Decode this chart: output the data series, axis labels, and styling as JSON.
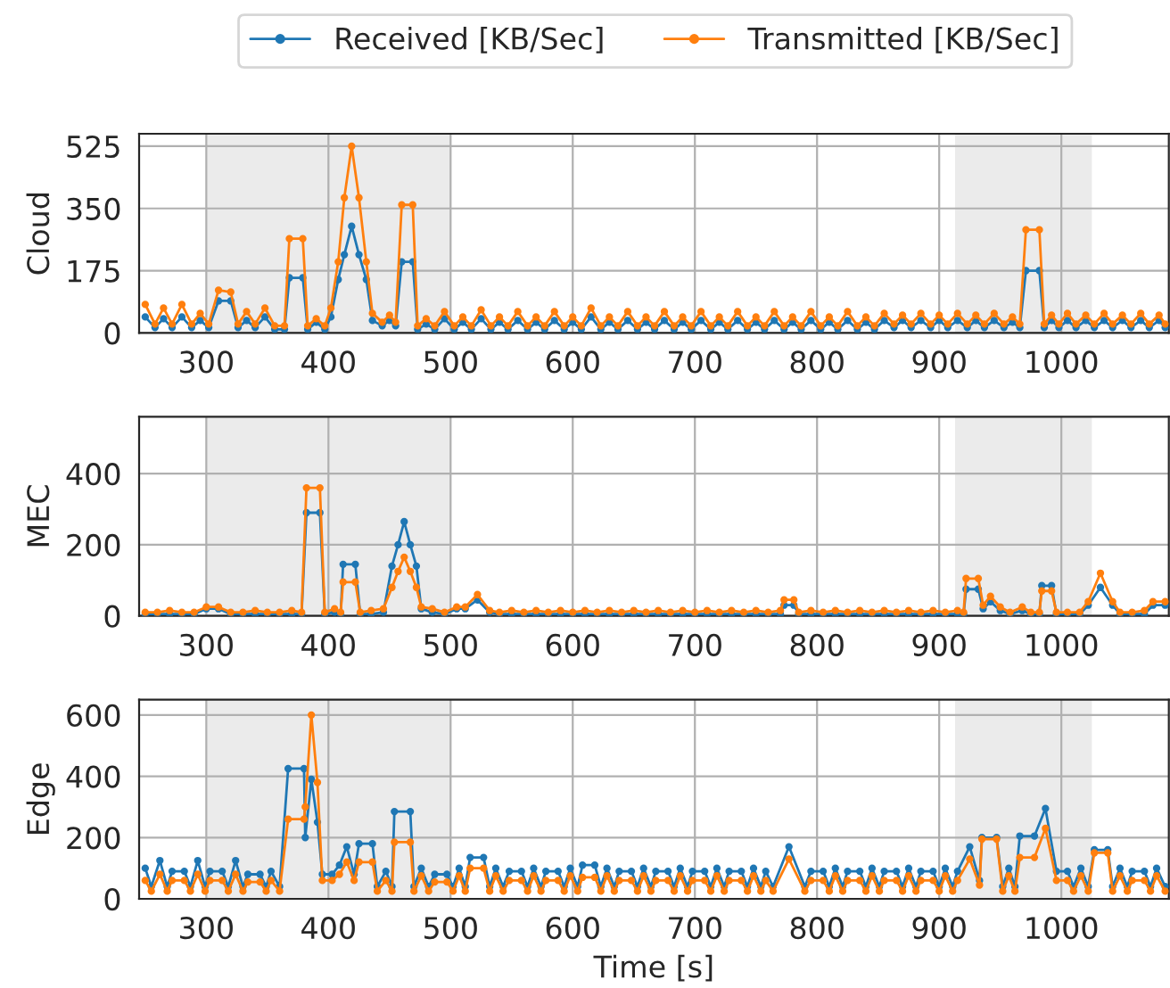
{
  "chart_data": [
    {
      "type": "line",
      "ylabel": "Cloud",
      "legend": "top",
      "marker": "circle",
      "grid": true,
      "xlim": [
        245,
        1088
      ],
      "xticks": [
        300,
        400,
        500,
        600,
        700,
        800,
        900,
        1000
      ],
      "ylim": [
        0,
        560
      ],
      "yticks": [
        0,
        175,
        350,
        525
      ],
      "bands": [
        {
          "axis": "x",
          "from": 300,
          "to": 500,
          "color": "#ebebeb"
        },
        {
          "axis": "x",
          "from": 913,
          "to": 1025,
          "color": "#ebebeb"
        }
      ],
      "x": [
        250,
        258,
        265,
        272,
        280,
        288,
        295,
        302,
        310,
        320,
        326,
        333,
        340,
        348,
        356,
        364,
        368,
        379,
        383,
        390,
        397,
        402,
        408,
        413,
        419,
        425,
        431,
        436,
        444,
        450,
        455,
        460,
        469,
        473,
        480,
        487,
        495,
        503,
        510,
        517,
        525,
        533,
        540,
        547,
        555,
        563,
        570,
        577,
        585,
        593,
        600,
        607,
        615,
        623,
        630,
        637,
        645,
        653,
        660,
        667,
        675,
        683,
        690,
        697,
        705,
        713,
        720,
        727,
        735,
        743,
        750,
        757,
        765,
        773,
        780,
        787,
        795,
        803,
        810,
        817,
        825,
        833,
        840,
        847,
        855,
        863,
        870,
        877,
        885,
        893,
        900,
        907,
        915,
        923,
        930,
        937,
        945,
        953,
        960,
        966,
        971,
        982,
        986,
        992,
        998,
        1005,
        1012,
        1020,
        1027,
        1035,
        1042,
        1050,
        1057,
        1065,
        1072,
        1080,
        1085
      ],
      "series": [
        {
          "name": "Received [KB/Sec]",
          "color": "#1f77b4",
          "values": [
            45,
            15,
            40,
            15,
            45,
            15,
            35,
            15,
            90,
            90,
            15,
            35,
            15,
            45,
            10,
            10,
            155,
            155,
            10,
            30,
            10,
            45,
            150,
            220,
            300,
            220,
            150,
            35,
            20,
            35,
            20,
            200,
            200,
            10,
            25,
            10,
            40,
            10,
            30,
            10,
            40,
            10,
            30,
            10,
            35,
            10,
            30,
            10,
            35,
            10,
            30,
            10,
            45,
            10,
            30,
            10,
            35,
            10,
            30,
            10,
            35,
            10,
            30,
            10,
            35,
            10,
            30,
            10,
            35,
            10,
            30,
            10,
            35,
            10,
            30,
            10,
            35,
            10,
            30,
            10,
            35,
            10,
            30,
            10,
            35,
            15,
            35,
            15,
            35,
            15,
            35,
            15,
            35,
            15,
            35,
            15,
            35,
            15,
            30,
            15,
            175,
            175,
            15,
            35,
            15,
            35,
            15,
            35,
            15,
            35,
            15,
            35,
            15,
            35,
            15,
            35,
            15
          ]
        },
        {
          "name": "Transmitted [KB/Sec]",
          "color": "#ff7f0e",
          "values": [
            80,
            25,
            70,
            25,
            80,
            25,
            55,
            25,
            120,
            115,
            25,
            60,
            25,
            70,
            20,
            20,
            265,
            265,
            20,
            40,
            20,
            70,
            200,
            380,
            525,
            380,
            200,
            55,
            30,
            50,
            30,
            360,
            360,
            20,
            40,
            20,
            60,
            20,
            45,
            20,
            65,
            20,
            45,
            20,
            60,
            20,
            45,
            20,
            60,
            20,
            45,
            20,
            70,
            20,
            45,
            20,
            60,
            20,
            45,
            20,
            60,
            20,
            45,
            20,
            60,
            20,
            45,
            20,
            60,
            20,
            45,
            20,
            60,
            20,
            45,
            20,
            60,
            20,
            45,
            20,
            60,
            20,
            45,
            20,
            55,
            25,
            50,
            25,
            55,
            25,
            50,
            25,
            55,
            25,
            50,
            25,
            55,
            25,
            45,
            25,
            290,
            290,
            25,
            50,
            25,
            55,
            25,
            50,
            25,
            55,
            25,
            50,
            25,
            55,
            25,
            50,
            25
          ]
        }
      ]
    },
    {
      "type": "line",
      "ylabel": "MEC",
      "marker": "circle",
      "grid": true,
      "xlim": [
        245,
        1088
      ],
      "xticks": [
        300,
        400,
        500,
        600,
        700,
        800,
        900,
        1000
      ],
      "ylim": [
        0,
        560
      ],
      "yticks": [
        0,
        200,
        400
      ],
      "bands": [
        {
          "axis": "x",
          "from": 300,
          "to": 500,
          "color": "#ebebeb"
        },
        {
          "axis": "x",
          "from": 913,
          "to": 1025,
          "color": "#ebebeb"
        }
      ],
      "x": [
        250,
        260,
        270,
        280,
        290,
        300,
        310,
        320,
        330,
        340,
        350,
        360,
        370,
        378,
        382,
        393,
        397,
        405,
        410,
        412,
        422,
        426,
        435,
        445,
        452,
        457,
        462,
        467,
        472,
        476,
        485,
        495,
        505,
        512,
        522,
        532,
        540,
        550,
        560,
        570,
        580,
        590,
        600,
        610,
        620,
        630,
        640,
        650,
        660,
        670,
        680,
        690,
        700,
        710,
        720,
        730,
        740,
        750,
        760,
        770,
        773,
        781,
        785,
        795,
        805,
        815,
        825,
        835,
        845,
        855,
        865,
        875,
        885,
        895,
        905,
        915,
        920,
        922,
        932,
        936,
        942,
        950,
        958,
        968,
        975,
        982,
        984,
        992,
        996,
        1005,
        1015,
        1022,
        1032,
        1042,
        1048,
        1058,
        1068,
        1075,
        1085
      ],
      "series": [
        {
          "color": "#1f77b4",
          "values": [
            5,
            5,
            5,
            5,
            5,
            20,
            20,
            5,
            5,
            5,
            5,
            5,
            5,
            5,
            290,
            290,
            5,
            10,
            5,
            145,
            145,
            5,
            5,
            10,
            140,
            200,
            265,
            200,
            140,
            20,
            10,
            5,
            20,
            20,
            45,
            10,
            5,
            5,
            5,
            5,
            5,
            5,
            5,
            5,
            5,
            5,
            5,
            5,
            5,
            5,
            5,
            5,
            5,
            5,
            5,
            5,
            5,
            5,
            5,
            5,
            30,
            30,
            5,
            5,
            5,
            5,
            5,
            5,
            5,
            5,
            5,
            5,
            5,
            5,
            5,
            5,
            5,
            75,
            75,
            20,
            40,
            15,
            5,
            15,
            5,
            5,
            85,
            85,
            5,
            5,
            5,
            30,
            80,
            30,
            5,
            5,
            5,
            30,
            30
          ]
        },
        {
          "color": "#ff7f0e",
          "values": [
            10,
            10,
            15,
            10,
            10,
            25,
            25,
            10,
            10,
            15,
            10,
            10,
            15,
            10,
            360,
            360,
            10,
            20,
            10,
            95,
            95,
            10,
            15,
            20,
            80,
            125,
            165,
            125,
            80,
            25,
            20,
            10,
            25,
            25,
            60,
            15,
            10,
            15,
            10,
            15,
            10,
            15,
            10,
            15,
            10,
            15,
            10,
            15,
            10,
            15,
            10,
            15,
            10,
            15,
            10,
            15,
            10,
            15,
            10,
            15,
            45,
            45,
            10,
            15,
            10,
            15,
            10,
            15,
            10,
            15,
            10,
            15,
            10,
            15,
            10,
            15,
            10,
            105,
            105,
            30,
            55,
            25,
            10,
            25,
            10,
            10,
            70,
            70,
            10,
            10,
            10,
            40,
            120,
            40,
            10,
            10,
            15,
            40,
            40
          ]
        }
      ]
    },
    {
      "type": "line",
      "ylabel": "Edge",
      "xlabel": "Time [s]",
      "marker": "circle",
      "grid": true,
      "xlim": [
        245,
        1088
      ],
      "xticks": [
        300,
        400,
        500,
        600,
        700,
        800,
        900,
        1000
      ],
      "ylim": [
        0,
        650
      ],
      "yticks": [
        0,
        200,
        400,
        600
      ],
      "bands": [
        {
          "axis": "x",
          "from": 300,
          "to": 500,
          "color": "#ebebeb"
        },
        {
          "axis": "x",
          "from": 913,
          "to": 1025,
          "color": "#ebebeb"
        }
      ],
      "x": [
        250,
        255,
        262,
        268,
        272,
        282,
        287,
        293,
        299,
        303,
        313,
        318,
        324,
        330,
        334,
        344,
        349,
        353,
        360,
        367,
        380,
        381,
        386,
        391,
        395,
        403,
        409,
        415,
        421,
        425,
        436,
        440,
        447,
        452,
        454,
        467,
        470,
        476,
        482,
        487,
        497,
        502,
        507,
        512,
        516,
        527,
        532,
        537,
        543,
        548,
        558,
        563,
        568,
        574,
        578,
        588,
        593,
        598,
        604,
        608,
        618,
        623,
        628,
        634,
        638,
        648,
        653,
        658,
        664,
        668,
        678,
        683,
        688,
        694,
        698,
        708,
        713,
        718,
        724,
        728,
        738,
        743,
        748,
        754,
        758,
        764,
        777,
        790,
        795,
        805,
        810,
        815,
        821,
        825,
        835,
        840,
        845,
        851,
        855,
        865,
        870,
        875,
        881,
        885,
        895,
        900,
        905,
        911,
        915,
        925,
        933,
        935,
        947,
        952,
        957,
        962,
        966,
        978,
        987,
        996,
        1005,
        1010,
        1016,
        1022,
        1027,
        1038,
        1042,
        1048,
        1054,
        1058,
        1068,
        1073,
        1078,
        1085
      ],
      "series": [
        {
          "color": "#1f77b4",
          "values": [
            100,
            40,
            125,
            40,
            90,
            90,
            40,
            125,
            40,
            90,
            90,
            40,
            125,
            40,
            80,
            80,
            40,
            90,
            40,
            425,
            425,
            200,
            390,
            250,
            80,
            80,
            110,
            170,
            80,
            180,
            180,
            40,
            90,
            40,
            285,
            285,
            40,
            100,
            40,
            80,
            80,
            40,
            100,
            40,
            135,
            135,
            40,
            100,
            40,
            90,
            90,
            40,
            100,
            40,
            90,
            90,
            40,
            100,
            40,
            110,
            110,
            40,
            100,
            40,
            90,
            90,
            40,
            100,
            40,
            90,
            90,
            40,
            100,
            40,
            90,
            90,
            40,
            100,
            40,
            90,
            90,
            40,
            100,
            40,
            90,
            40,
            170,
            40,
            90,
            90,
            40,
            100,
            40,
            90,
            90,
            40,
            100,
            40,
            90,
            90,
            40,
            100,
            40,
            90,
            90,
            40,
            100,
            40,
            90,
            170,
            60,
            200,
            200,
            40,
            100,
            40,
            205,
            205,
            295,
            90,
            90,
            40,
            100,
            40,
            160,
            160,
            40,
            100,
            40,
            90,
            90,
            40,
            100,
            40
          ]
        },
        {
          "color": "#ff7f0e",
          "values": [
            60,
            25,
            80,
            25,
            60,
            60,
            25,
            80,
            25,
            60,
            60,
            25,
            80,
            25,
            55,
            55,
            25,
            60,
            25,
            260,
            260,
            300,
            600,
            380,
            60,
            60,
            80,
            120,
            60,
            120,
            120,
            25,
            60,
            25,
            185,
            185,
            25,
            75,
            25,
            55,
            55,
            25,
            75,
            25,
            100,
            100,
            25,
            75,
            25,
            60,
            60,
            25,
            75,
            25,
            60,
            60,
            25,
            75,
            25,
            70,
            70,
            25,
            75,
            25,
            60,
            60,
            25,
            75,
            25,
            60,
            60,
            25,
            75,
            25,
            60,
            60,
            25,
            75,
            25,
            60,
            60,
            25,
            75,
            25,
            60,
            25,
            130,
            25,
            60,
            60,
            25,
            75,
            25,
            60,
            60,
            25,
            75,
            25,
            60,
            60,
            25,
            75,
            25,
            60,
            60,
            25,
            75,
            25,
            60,
            130,
            45,
            195,
            195,
            25,
            75,
            25,
            135,
            135,
            230,
            60,
            60,
            25,
            75,
            25,
            150,
            150,
            25,
            75,
            25,
            60,
            60,
            25,
            75,
            25
          ]
        }
      ]
    }
  ]
}
